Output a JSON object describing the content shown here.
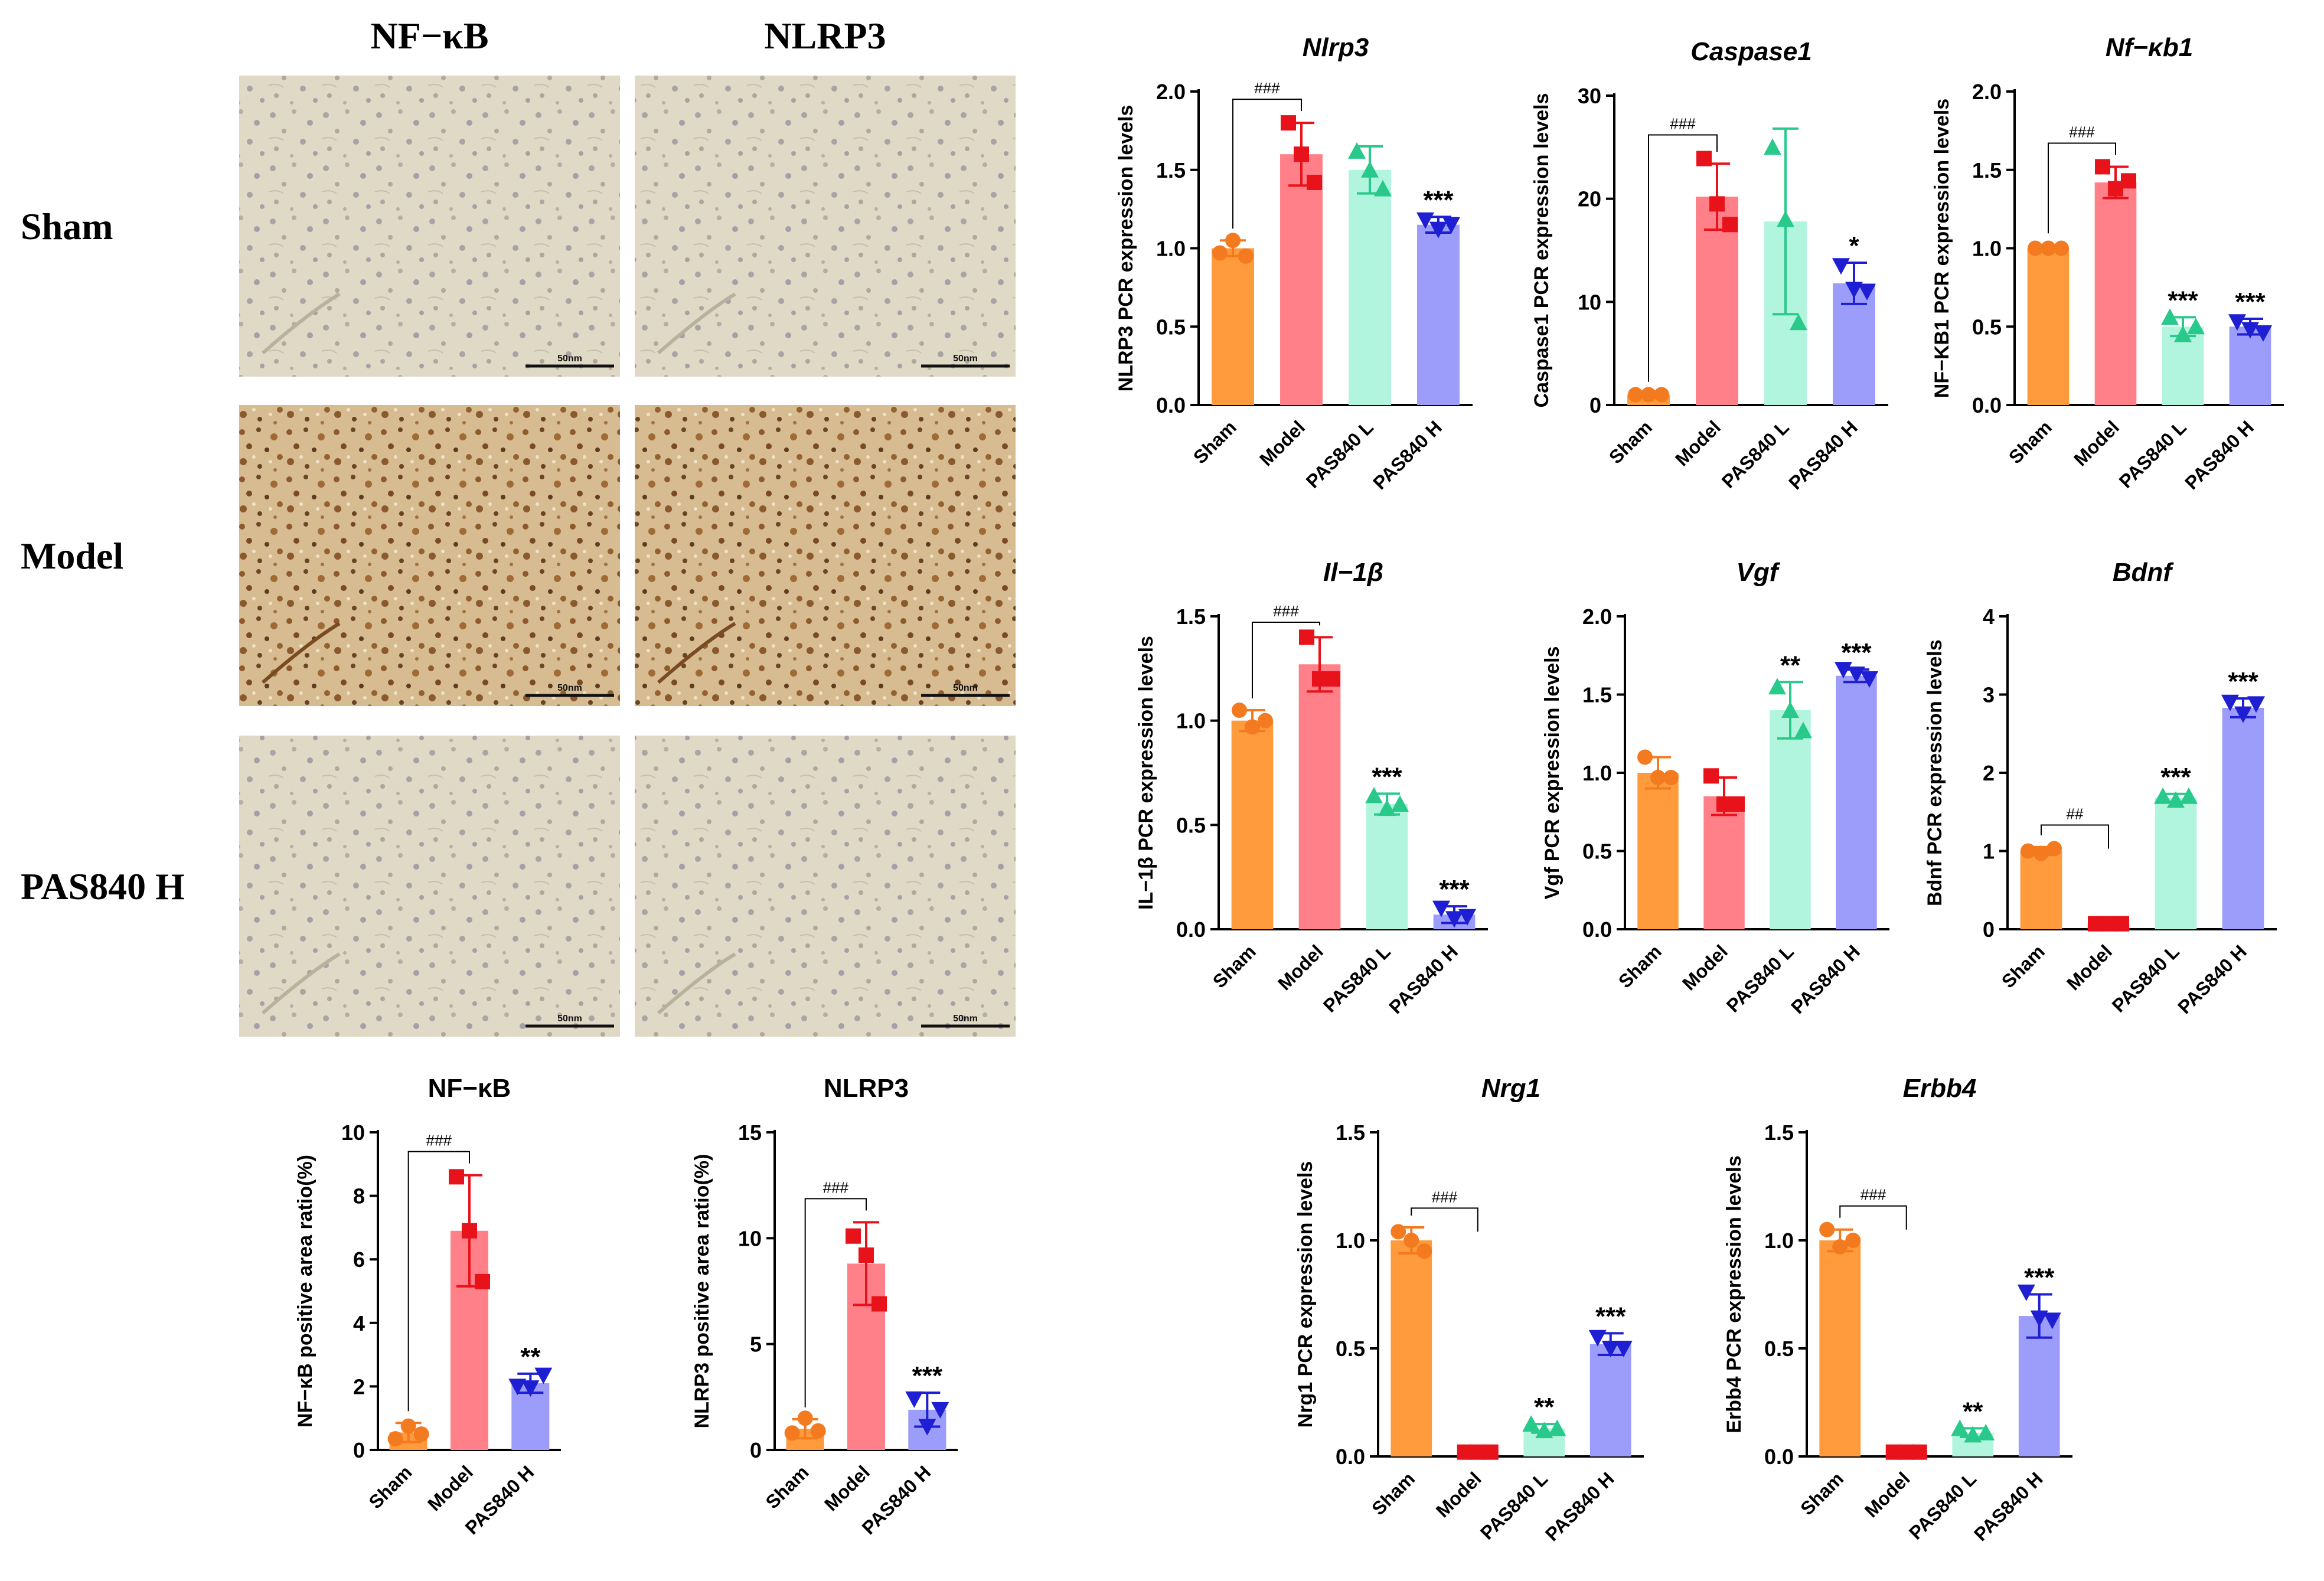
{
  "figure": {
    "column_headers": [
      "NF−κB",
      "NLRP3"
    ],
    "row_labels": [
      "Sham",
      "Model",
      "PAS840 H"
    ],
    "scale_bar_label": "50nm",
    "micrographs": [
      {
        "row": "Sham",
        "marker": "NF−κB",
        "stain": "light"
      },
      {
        "row": "Sham",
        "marker": "NLRP3",
        "stain": "light"
      },
      {
        "row": "Model",
        "marker": "NF−κB",
        "stain": "dark"
      },
      {
        "row": "Model",
        "marker": "NLRP3",
        "stain": "dark"
      },
      {
        "row": "PAS840 H",
        "marker": "NF−κB",
        "stain": "light"
      },
      {
        "row": "PAS840 H",
        "marker": "NLRP3",
        "stain": "light"
      }
    ]
  },
  "colors": {
    "Sham": "#FF9A3D",
    "Model": "#FF8088",
    "PAS840 L": "#B2F5DF",
    "PAS840 H": "#9C9CFA",
    "Sham_point": "#F47A1F",
    "Model_point": "#E8121A",
    "PAS840 L_point": "#29C98C",
    "PAS840 H_point": "#1E1ED2"
  },
  "chart_data": [
    {
      "id": "nfkb-area",
      "type": "bar",
      "title": "NF−κB",
      "title_italic": false,
      "ylabel": "NF−κB positive area ratio(%)",
      "xlabel": "",
      "ylim": [
        0,
        10
      ],
      "yticks": [
        0,
        2,
        4,
        6,
        8,
        10
      ],
      "categories": [
        "Sham",
        "Model",
        "PAS840 H"
      ],
      "values": [
        0.55,
        6.9,
        2.1
      ],
      "errors": [
        0.3,
        1.75,
        0.3
      ],
      "points": [
        [
          0.35,
          0.75,
          0.5
        ],
        [
          8.6,
          6.9,
          5.3
        ],
        [
          2.0,
          1.95,
          2.35
        ]
      ],
      "significance": [
        "",
        "",
        "**"
      ],
      "bracket": {
        "from": "Sham",
        "to": "Model",
        "label": "###"
      }
    },
    {
      "id": "nlrp3-area",
      "type": "bar",
      "title": "NLRP3",
      "title_italic": false,
      "ylabel": "NLRP3 positive area ratio(%)",
      "xlabel": "",
      "ylim": [
        0,
        15
      ],
      "yticks": [
        0,
        5,
        10,
        15
      ],
      "categories": [
        "Sham",
        "Model",
        "PAS840 H"
      ],
      "values": [
        1.0,
        8.8,
        1.9
      ],
      "errors": [
        0.45,
        1.95,
        0.8
      ],
      "points": [
        [
          0.8,
          1.5,
          0.9
        ],
        [
          10.1,
          9.2,
          6.9
        ],
        [
          2.4,
          1.1,
          1.9
        ]
      ],
      "significance": [
        "",
        "",
        "***"
      ],
      "bracket": {
        "from": "Sham",
        "to": "Model",
        "label": "###"
      }
    },
    {
      "id": "nlrp3-pcr",
      "type": "bar",
      "title": "Nlrp3",
      "title_italic": true,
      "ylabel": "NLRP3  PCR expression levels",
      "xlabel": "",
      "ylim": [
        0,
        2.0
      ],
      "yticks": [
        0.0,
        0.5,
        1.0,
        1.5,
        2.0
      ],
      "categories": [
        "Sham",
        "Model",
        "PAS840 L",
        "PAS840 H"
      ],
      "values": [
        1.0,
        1.6,
        1.5,
        1.15
      ],
      "errors": [
        0.05,
        0.2,
        0.15,
        0.05
      ],
      "points": [
        [
          0.97,
          1.05,
          0.95
        ],
        [
          1.8,
          1.6,
          1.42
        ],
        [
          1.62,
          1.5,
          1.38
        ],
        [
          1.18,
          1.12,
          1.15
        ]
      ],
      "significance": [
        "",
        "",
        "",
        "***"
      ],
      "bracket": {
        "from": "Sham",
        "to": "Model",
        "label": "###"
      }
    },
    {
      "id": "caspase1-pcr",
      "type": "bar",
      "title": "Caspase1",
      "title_italic": true,
      "ylabel": "Caspase1 PCR expression levels",
      "xlabel": "",
      "ylim": [
        0,
        30
      ],
      "yticks": [
        0,
        10,
        20,
        30
      ],
      "categories": [
        "Sham",
        "Model",
        "PAS840 L",
        "PAS840 H"
      ],
      "values": [
        1.0,
        20.2,
        17.8,
        11.8
      ],
      "errors": [
        0.1,
        3.2,
        9.0,
        2.0
      ],
      "points": [
        [
          1.0,
          1.0,
          1.0
        ],
        [
          23.9,
          19.5,
          17.5
        ],
        [
          25.0,
          18.0,
          8.0
        ],
        [
          13.5,
          11.2,
          11.0
        ]
      ],
      "significance": [
        "",
        "",
        "",
        "*"
      ],
      "bracket": {
        "from": "Sham",
        "to": "Model",
        "label": "###"
      }
    },
    {
      "id": "nfkb1-pcr",
      "type": "bar",
      "title": "Nf−κb1",
      "title_italic": true,
      "ylabel": "NF−KB1 PCR expression levels",
      "xlabel": "",
      "ylim": [
        0,
        2.0
      ],
      "yticks": [
        0.0,
        0.5,
        1.0,
        1.5,
        2.0
      ],
      "categories": [
        "Sham",
        "Model",
        "PAS840 L",
        "PAS840 H"
      ],
      "values": [
        1.0,
        1.42,
        0.5,
        0.5
      ],
      "errors": [
        0.02,
        0.1,
        0.06,
        0.05
      ],
      "points": [
        [
          1.0,
          1.0,
          1.0
        ],
        [
          1.52,
          1.38,
          1.43
        ],
        [
          0.56,
          0.45,
          0.5
        ],
        [
          0.53,
          0.48,
          0.46
        ]
      ],
      "significance": [
        "",
        "",
        "***",
        "***"
      ],
      "bracket": {
        "from": "Sham",
        "to": "Model",
        "label": "###"
      }
    },
    {
      "id": "il1b-pcr",
      "type": "bar",
      "title": "Il−1β",
      "title_italic": true,
      "ylabel": "IL−1β PCR expression levels",
      "xlabel": "",
      "ylim": [
        0,
        1.5
      ],
      "yticks": [
        0.0,
        0.5,
        1.0,
        1.5
      ],
      "categories": [
        "Sham",
        "Model",
        "PAS840 L",
        "PAS840 H"
      ],
      "values": [
        1.0,
        1.27,
        0.6,
        0.07
      ],
      "errors": [
        0.05,
        0.13,
        0.05,
        0.04
      ],
      "points": [
        [
          1.05,
          0.97,
          1.0
        ],
        [
          1.4,
          1.2,
          1.2
        ],
        [
          0.64,
          0.58,
          0.6
        ],
        [
          0.1,
          0.05,
          0.06
        ]
      ],
      "significance": [
        "",
        "",
        "***",
        "***"
      ],
      "bracket": {
        "from": "Sham",
        "to": "Model",
        "label": "###"
      }
    },
    {
      "id": "vgf-pcr",
      "type": "bar",
      "title": "Vgf",
      "title_italic": true,
      "ylabel": "Vgf PCR expression levels",
      "xlabel": "",
      "ylim": [
        0,
        2.0
      ],
      "yticks": [
        0.0,
        0.5,
        1.0,
        1.5,
        2.0
      ],
      "categories": [
        "Sham",
        "Model",
        "PAS840 L",
        "PAS840 H"
      ],
      "values": [
        1.0,
        0.85,
        1.4,
        1.62
      ],
      "errors": [
        0.1,
        0.12,
        0.18,
        0.04
      ],
      "points": [
        [
          1.1,
          0.97,
          0.97
        ],
        [
          0.98,
          0.8,
          0.8
        ],
        [
          1.55,
          1.4,
          1.27
        ],
        [
          1.66,
          1.63,
          1.6
        ]
      ],
      "significance": [
        "",
        "",
        "**",
        "***"
      ],
      "bracket": null
    },
    {
      "id": "bdnf-pcr",
      "type": "bar",
      "title": "Bdnf",
      "title_italic": true,
      "ylabel": "Bdnf PCR expression levels",
      "xlabel": "",
      "ylim": [
        0,
        4
      ],
      "yticks": [
        0,
        1,
        2,
        3,
        4
      ],
      "categories": [
        "Sham",
        "Model",
        "PAS840 L",
        "PAS840 H"
      ],
      "values": [
        1.0,
        0.07,
        1.68,
        2.83
      ],
      "errors": [
        0.05,
        0.02,
        0.05,
        0.12
      ],
      "points": [
        [
          1.0,
          0.97,
          1.03
        ],
        [
          0.07,
          0.07,
          0.07
        ],
        [
          1.7,
          1.65,
          1.7
        ],
        [
          2.9,
          2.75,
          2.88
        ]
      ],
      "significance": [
        "",
        "",
        "***",
        "***"
      ],
      "bracket": {
        "from": "Sham",
        "to": "Model",
        "label": "##"
      }
    },
    {
      "id": "nrg1-pcr",
      "type": "bar",
      "title": "Nrg1",
      "title_italic": true,
      "ylabel": "Nrg1 PCR expression levels",
      "xlabel": "",
      "ylim": [
        0,
        1.5
      ],
      "yticks": [
        0.0,
        0.5,
        1.0,
        1.5
      ],
      "categories": [
        "Sham",
        "Model",
        "PAS840 L",
        "PAS840 H"
      ],
      "values": [
        1.0,
        0.02,
        0.13,
        0.52
      ],
      "errors": [
        0.06,
        0.01,
        0.02,
        0.05
      ],
      "points": [
        [
          1.04,
          1.0,
          0.95
        ],
        [
          0.02,
          0.02,
          0.02
        ],
        [
          0.15,
          0.12,
          0.13
        ],
        [
          0.55,
          0.5,
          0.5
        ]
      ],
      "significance": [
        "",
        "",
        "**",
        "***"
      ],
      "bracket": {
        "from": "Sham",
        "to": "Model",
        "label": "###"
      }
    },
    {
      "id": "erbb4-pcr",
      "type": "bar",
      "title": "Erbb4",
      "title_italic": true,
      "ylabel": "Erbb4 PCR expression levels",
      "xlabel": "",
      "ylim": [
        0,
        1.5
      ],
      "yticks": [
        0.0,
        0.5,
        1.0,
        1.5
      ],
      "categories": [
        "Sham",
        "Model",
        "PAS840 L",
        "PAS840 H"
      ],
      "values": [
        1.0,
        0.02,
        0.11,
        0.65
      ],
      "errors": [
        0.05,
        0.01,
        0.02,
        0.1
      ],
      "points": [
        [
          1.05,
          0.97,
          1.0
        ],
        [
          0.02,
          0.02,
          0.02
        ],
        [
          0.13,
          0.1,
          0.11
        ],
        [
          0.76,
          0.64,
          0.63
        ]
      ],
      "significance": [
        "",
        "",
        "**",
        "***"
      ],
      "bracket": {
        "from": "Sham",
        "to": "Model",
        "label": "###"
      }
    }
  ]
}
